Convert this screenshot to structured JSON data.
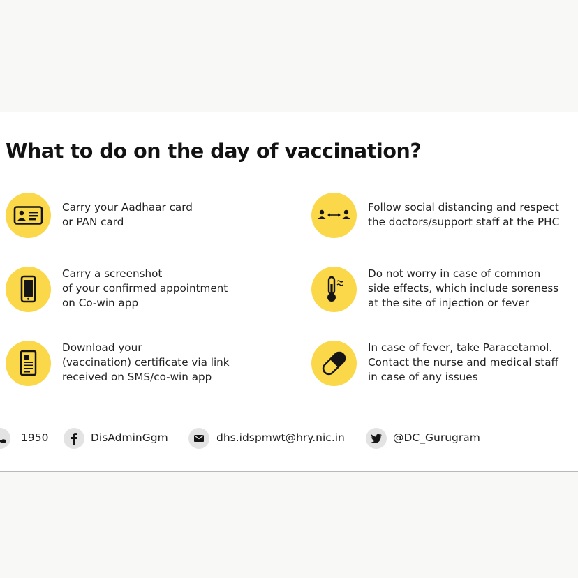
{
  "title": "What to do on the day of vaccination?",
  "colors": {
    "accent": "#fbd849",
    "icon": "#151515",
    "page_bg": "#f8f8f7"
  },
  "tips": [
    {
      "icon": "id-card-icon",
      "text": "Carry your Aadhaar card\nor PAN card"
    },
    {
      "icon": "social-distancing-icon",
      "text": "Follow social distancing and respect\nthe doctors/support staff at the PHC"
    },
    {
      "icon": "smartphone-icon",
      "text": "Carry a screenshot\nof your confirmed appointment\non Co-win app"
    },
    {
      "icon": "thermometer-icon",
      "text": "Do not worry in case of common\nside effects, which include soreness\nat the site of injection or fever"
    },
    {
      "icon": "certificate-icon",
      "text": "Download your\n(vaccination) certificate via link\nreceived on SMS/co-win app"
    },
    {
      "icon": "pill-icon",
      "text": "In case of fever, take Paracetamol.\nContact the nurse and medical staff\nin case of any issues"
    }
  ],
  "footer": {
    "phone": "1950",
    "facebook": "DisAdminGgm",
    "email": "dhs.idspmwt@hry.nic.in",
    "twitter": "@DC_Gurugram"
  }
}
